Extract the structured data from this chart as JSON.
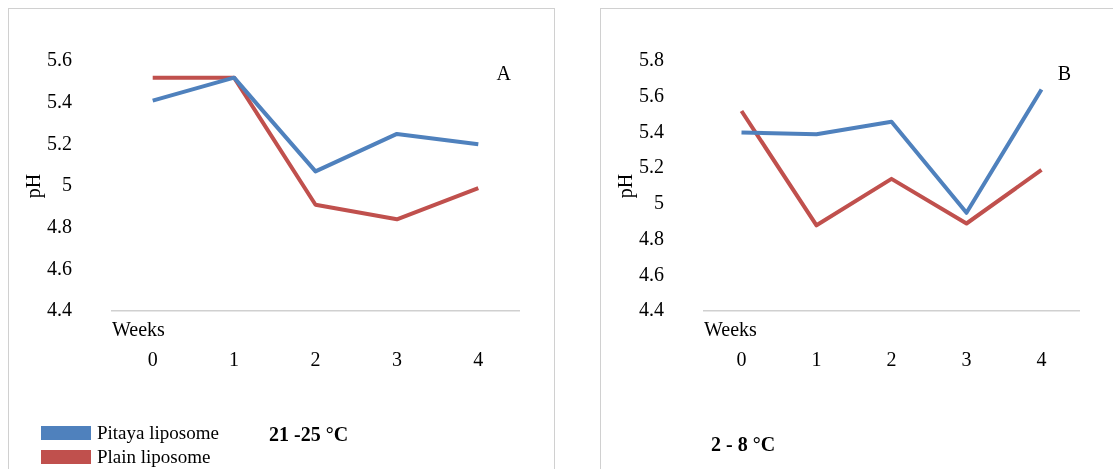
{
  "chart_data": [
    {
      "type": "line",
      "title": "A",
      "xlabel": "Weeks",
      "ylabel": "pH",
      "categories": [
        "0",
        "1",
        "2",
        "3",
        "4"
      ],
      "series": [
        {
          "name": "Pitaya liposome",
          "color": "#4f81bd",
          "values": [
            5.41,
            5.52,
            5.07,
            5.25,
            5.2
          ]
        },
        {
          "name": "Plain liposome",
          "color": "#c0504d",
          "values": [
            5.52,
            5.52,
            4.91,
            4.84,
            4.99
          ]
        }
      ],
      "ylim": [
        4.4,
        5.6
      ],
      "yticks": [
        4.4,
        4.6,
        4.8,
        5,
        5.2,
        5.4,
        5.6
      ],
      "grid": false,
      "legend": "bottom left",
      "marker": "none",
      "annotations": [
        "21 -25 °C"
      ]
    },
    {
      "type": "line",
      "title": "B",
      "xlabel": "Weeks",
      "ylabel": "pH",
      "categories": [
        "0",
        "1",
        "2",
        "3",
        "4"
      ],
      "series": [
        {
          "color": "#4f81bd",
          "values": [
            5.4,
            5.39,
            5.46,
            4.95,
            5.64
          ]
        },
        {
          "color": "#c0504d",
          "values": [
            5.52,
            4.88,
            5.14,
            4.89,
            5.19
          ]
        }
      ],
      "ylim": [
        4.4,
        5.8
      ],
      "yticks": [
        4.4,
        4.6,
        4.8,
        5,
        5.2,
        5.4,
        5.6,
        5.8
      ],
      "grid": false,
      "marker": "none",
      "annotations": [
        "2 - 8 °C"
      ]
    }
  ]
}
